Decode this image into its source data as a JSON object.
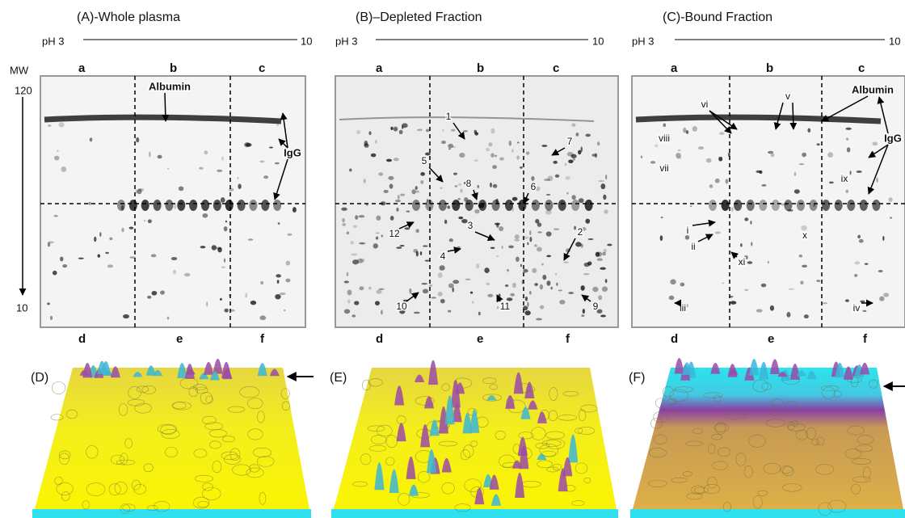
{
  "panels": [
    {
      "title": "(A)-Whole plasma",
      "ph_start": "pH 3",
      "ph_end": "10",
      "mw_label": "MW",
      "mw_top": "120",
      "mw_bottom": "10",
      "top_letters": [
        "a",
        "b",
        "c"
      ],
      "bottom_letters": [
        "d",
        "e",
        "f"
      ],
      "annotations": [
        "Albumin",
        "IgG"
      ]
    },
    {
      "title": "(B)–Depleted Fraction",
      "ph_start": "pH 3",
      "ph_end": "10",
      "top_letters": [
        "a",
        "b",
        "c"
      ],
      "bottom_letters": [
        "d",
        "e",
        "f"
      ],
      "annotations": [
        "1",
        "5",
        "8",
        "6",
        "7",
        "12",
        "3",
        "2",
        "4",
        "10",
        "11",
        "9"
      ]
    },
    {
      "title": "(C)-Bound Fraction",
      "ph_start": "pH 3",
      "ph_end": "10",
      "top_letters": [
        "a",
        "b",
        "c"
      ],
      "bottom_letters": [
        "d",
        "e",
        "f"
      ],
      "annotations": [
        "Albumin",
        "IgG",
        "vi",
        "v",
        "viii",
        "vii",
        "ix",
        "i",
        "ii",
        "x",
        "xi",
        "iii",
        "iv"
      ]
    }
  ],
  "surfaces": [
    {
      "label": "(D)"
    },
    {
      "label": "(E)"
    },
    {
      "label": "(F)"
    }
  ]
}
